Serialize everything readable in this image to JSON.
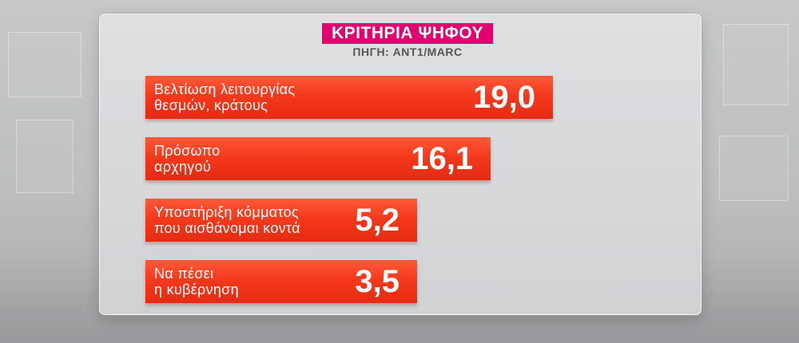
{
  "chart_data": {
    "type": "bar",
    "orientation": "horizontal",
    "title": "ΚΡΙΤΗΡΙΑ ΨΗΦΟΥ",
    "subtitle": "ΠΗΓΗ: ANT1/MARC",
    "bars": [
      {
        "label_lines": [
          "Βελτίωση λειτουργίας",
          "θεσμών, κράτους"
        ],
        "value": 19.0,
        "display": "19,0"
      },
      {
        "label_lines": [
          "Πρόσωπο",
          "αρχηγού"
        ],
        "value": 16.1,
        "display": "16,1"
      },
      {
        "label_lines": [
          "Υποστήριξη κόμματος",
          "που αισθάνομαι κοντά"
        ],
        "value": 5.2,
        "display": "5,2"
      },
      {
        "label_lines": [
          "Να πέσει",
          "η κυβέρνηση"
        ],
        "value": 3.5,
        "display": "3,5"
      }
    ]
  },
  "colors": {
    "title_bg": "#e3006f",
    "bar": "#f4391c",
    "text": "#ffffff",
    "source_text": "#55565a"
  }
}
